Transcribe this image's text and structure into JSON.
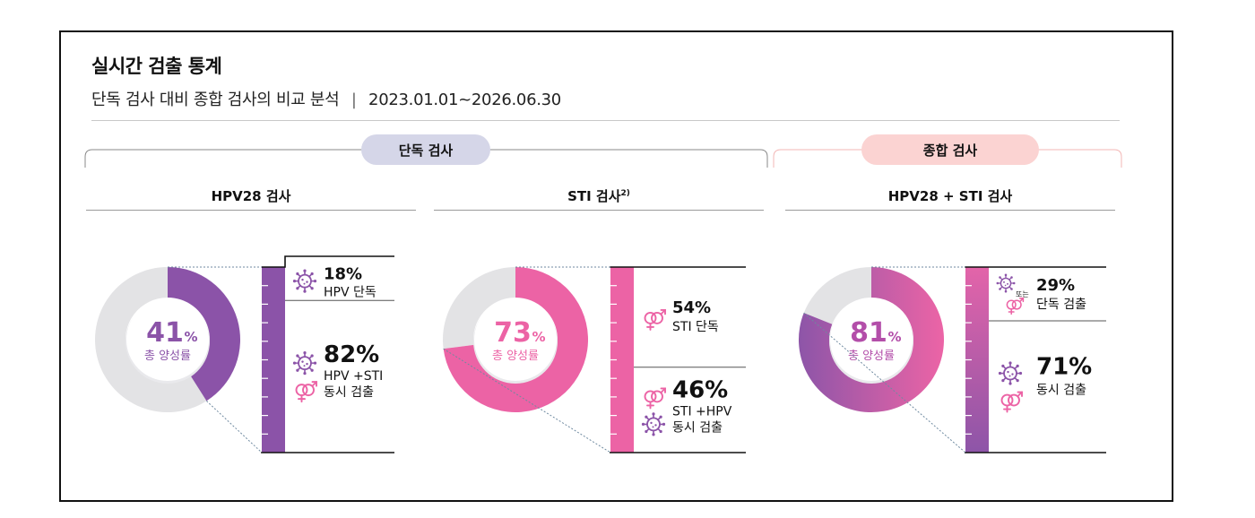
{
  "header": {
    "title": "실시간 검출 통계",
    "subtitle": "단독 검사 대비 종합 검사의 비교 분석",
    "separator": "|",
    "period": "2023.01.01~2026.06.30"
  },
  "groups": {
    "single": "단독 검사",
    "combined": "종합 검사"
  },
  "colors": {
    "purple": "#8b53a8",
    "pink": "#ec63a5",
    "gray_ring": "#e3e3e5",
    "single_pill": "#d5d6e8",
    "combined_pill": "#fbd3d2"
  },
  "chart_data": [
    {
      "type": "pie",
      "title": "HPV28 검사",
      "total_positive": {
        "value": "41",
        "unit": "%",
        "label": "총 양성률"
      },
      "slices": [
        {
          "name": "positive",
          "value": 41
        },
        {
          "name": "negative",
          "value": 59
        }
      ],
      "breakdown": [
        {
          "value": "18%",
          "label": "HPV 단독",
          "share": 18,
          "icons": [
            "virus-icon"
          ]
        },
        {
          "value": "82%",
          "label": "HPV +STI 동시 검출",
          "share": 82,
          "icons": [
            "virus-icon",
            "gender-symbol-icon"
          ]
        }
      ]
    },
    {
      "type": "pie",
      "title": "STI 검사",
      "title_sup": "2)",
      "total_positive": {
        "value": "73",
        "unit": "%",
        "label": "총 양성률"
      },
      "slices": [
        {
          "name": "positive",
          "value": 73
        },
        {
          "name": "negative",
          "value": 27
        }
      ],
      "breakdown": [
        {
          "value": "54%",
          "label": "STI 단독",
          "share": 54,
          "icons": [
            "gender-symbol-icon"
          ]
        },
        {
          "value": "46%",
          "label": "STI +HPV 동시 검출",
          "share": 46,
          "icons": [
            "gender-symbol-icon",
            "virus-icon"
          ]
        }
      ]
    },
    {
      "type": "pie",
      "title": "HPV28 + STI 검사",
      "total_positive": {
        "value": "81",
        "unit": "%",
        "label": "총 양성률"
      },
      "slices": [
        {
          "name": "positive",
          "value": 81
        },
        {
          "name": "negative",
          "value": 19
        }
      ],
      "breakdown": [
        {
          "value": "29%",
          "label": "단독 검출",
          "share": 29,
          "or_text": "또는",
          "icons": [
            "virus-icon",
            "gender-symbol-icon"
          ]
        },
        {
          "value": "71%",
          "label": "동시 검출",
          "share": 71,
          "icons": [
            "virus-icon",
            "gender-symbol-icon"
          ]
        }
      ]
    }
  ]
}
